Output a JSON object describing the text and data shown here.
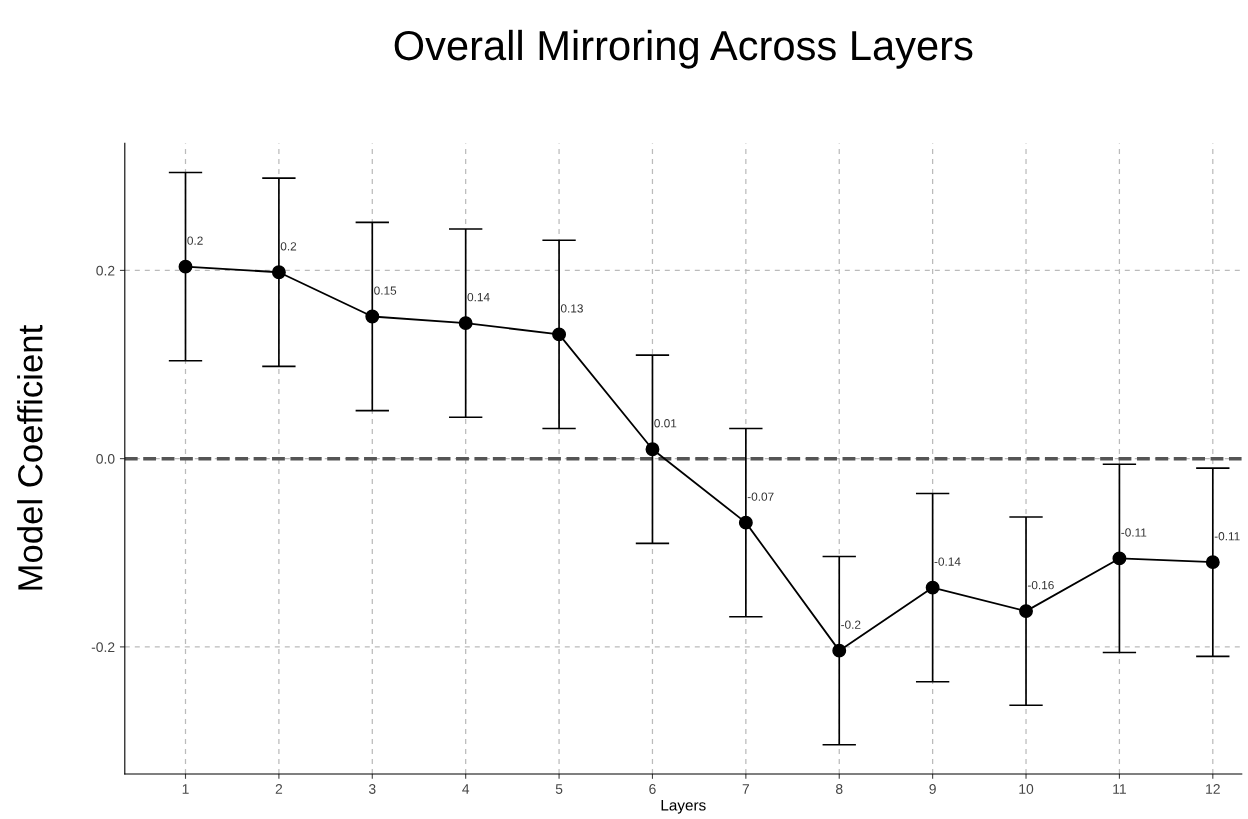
{
  "chart_data": {
    "type": "line",
    "title": "Overall Mirroring Across Layers",
    "xlabel": "Layers",
    "ylabel": "Model Coefficient",
    "x": [
      1,
      2,
      3,
      4,
      5,
      6,
      7,
      8,
      9,
      10,
      11,
      12
    ],
    "series": [
      {
        "color": "#000000",
        "values": [
          0.204,
          0.198,
          0.151,
          0.144,
          0.132,
          0.01,
          -0.068,
          -0.204,
          -0.137,
          -0.162,
          -0.106,
          -0.11
        ],
        "errors": [
          0.1,
          0.1,
          0.1,
          0.1,
          0.1,
          0.1,
          0.1,
          0.1,
          0.1,
          0.1,
          0.1,
          0.1
        ],
        "value_labels": [
          "0.2",
          "0.2",
          "0.15",
          "0.14",
          "0.13",
          "0.01",
          "-0.07",
          "-0.2",
          "-0.14",
          "-0.16",
          "-0.11",
          "-0.11"
        ]
      }
    ],
    "xlim": [
      0.35,
      12.31
    ],
    "xticks": [
      1,
      2,
      3,
      4,
      5,
      6,
      7,
      8,
      9,
      10,
      11,
      12
    ],
    "ylim": [
      -0.335,
      0.335
    ],
    "yticks": [
      {
        "value": -0.2,
        "label": "-0.2"
      },
      {
        "value": 0,
        "label": "0.0"
      },
      {
        "value": 0.2,
        "label": "0.2"
      }
    ],
    "ref_lines": [
      {
        "axis": "y",
        "value": 0,
        "color": "#555555",
        "line_style": "dashed"
      }
    ],
    "grid": true,
    "marker": "circle",
    "line_style": "solid",
    "legend": false
  }
}
